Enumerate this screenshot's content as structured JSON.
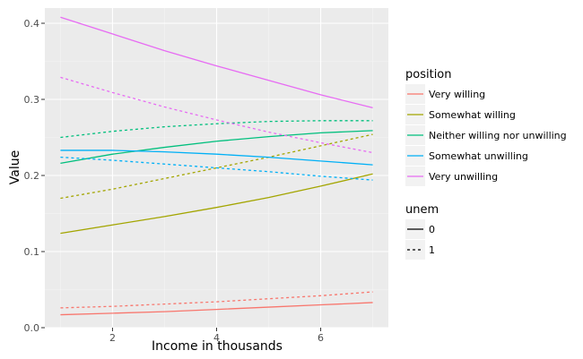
{
  "chart_data": {
    "type": "line",
    "title": "",
    "xlabel": "Income in thousands",
    "ylabel": "Value",
    "xlim": [
      0.7,
      7.3
    ],
    "ylim": [
      0.0,
      0.42
    ],
    "x_ticks": [
      2,
      4,
      6
    ],
    "x_tick_labels": [
      "2",
      "4",
      "6"
    ],
    "y_ticks": [
      0.0,
      0.1,
      0.2,
      0.3,
      0.4
    ],
    "y_tick_labels": [
      "0.0",
      "0.1",
      "0.2",
      "0.3",
      "0.4"
    ],
    "grid": true,
    "x": [
      1,
      2,
      3,
      4,
      5,
      6,
      7
    ],
    "legends": [
      {
        "title": "position",
        "kind": "color",
        "entries": [
          {
            "label": "Very willing",
            "color": "#F8766D"
          },
          {
            "label": "Somewhat willing",
            "color": "#A3A500"
          },
          {
            "label": "Neither willing nor unwilling",
            "color": "#00BF7D"
          },
          {
            "label": "Somewhat unwilling",
            "color": "#00B0F6"
          },
          {
            "label": "Very unwilling",
            "color": "#E76BF3"
          }
        ]
      },
      {
        "title": "unem",
        "kind": "linetype",
        "entries": [
          {
            "label": "0",
            "dash": "solid"
          },
          {
            "label": "1",
            "dash": "dashed"
          }
        ]
      }
    ],
    "series": [
      {
        "name": "Very willing",
        "unem": "0",
        "color": "#F8766D",
        "dash": "solid",
        "values": [
          0.017,
          0.019,
          0.021,
          0.024,
          0.027,
          0.03,
          0.033
        ]
      },
      {
        "name": "Very willing",
        "unem": "1",
        "color": "#F8766D",
        "dash": "dashed",
        "values": [
          0.026,
          0.028,
          0.031,
          0.034,
          0.038,
          0.042,
          0.047
        ]
      },
      {
        "name": "Somewhat willing",
        "unem": "0",
        "color": "#A3A500",
        "dash": "solid",
        "values": [
          0.124,
          0.135,
          0.146,
          0.158,
          0.171,
          0.186,
          0.202
        ]
      },
      {
        "name": "Somewhat willing",
        "unem": "1",
        "color": "#A3A500",
        "dash": "dashed",
        "values": [
          0.17,
          0.182,
          0.196,
          0.21,
          0.224,
          0.239,
          0.254
        ]
      },
      {
        "name": "Neither willing nor unwilling",
        "unem": "0",
        "color": "#00BF7D",
        "dash": "solid",
        "values": [
          0.216,
          0.228,
          0.237,
          0.245,
          0.251,
          0.256,
          0.259
        ]
      },
      {
        "name": "Neither willing nor unwilling",
        "unem": "1",
        "color": "#00BF7D",
        "dash": "dashed",
        "values": [
          0.25,
          0.258,
          0.264,
          0.268,
          0.271,
          0.272,
          0.272
        ]
      },
      {
        "name": "Somewhat unwilling",
        "unem": "0",
        "color": "#00B0F6",
        "dash": "solid",
        "values": [
          0.233,
          0.233,
          0.231,
          0.228,
          0.224,
          0.219,
          0.214
        ]
      },
      {
        "name": "Somewhat unwilling",
        "unem": "1",
        "color": "#00B0F6",
        "dash": "dashed",
        "values": [
          0.224,
          0.22,
          0.215,
          0.21,
          0.205,
          0.199,
          0.194
        ]
      },
      {
        "name": "Very unwilling",
        "unem": "0",
        "color": "#E76BF3",
        "dash": "solid",
        "values": [
          0.408,
          0.386,
          0.364,
          0.344,
          0.325,
          0.306,
          0.289
        ]
      },
      {
        "name": "Very unwilling",
        "unem": "1",
        "color": "#E76BF3",
        "dash": "dashed",
        "values": [
          0.329,
          0.309,
          0.29,
          0.273,
          0.257,
          0.243,
          0.23
        ]
      }
    ]
  }
}
